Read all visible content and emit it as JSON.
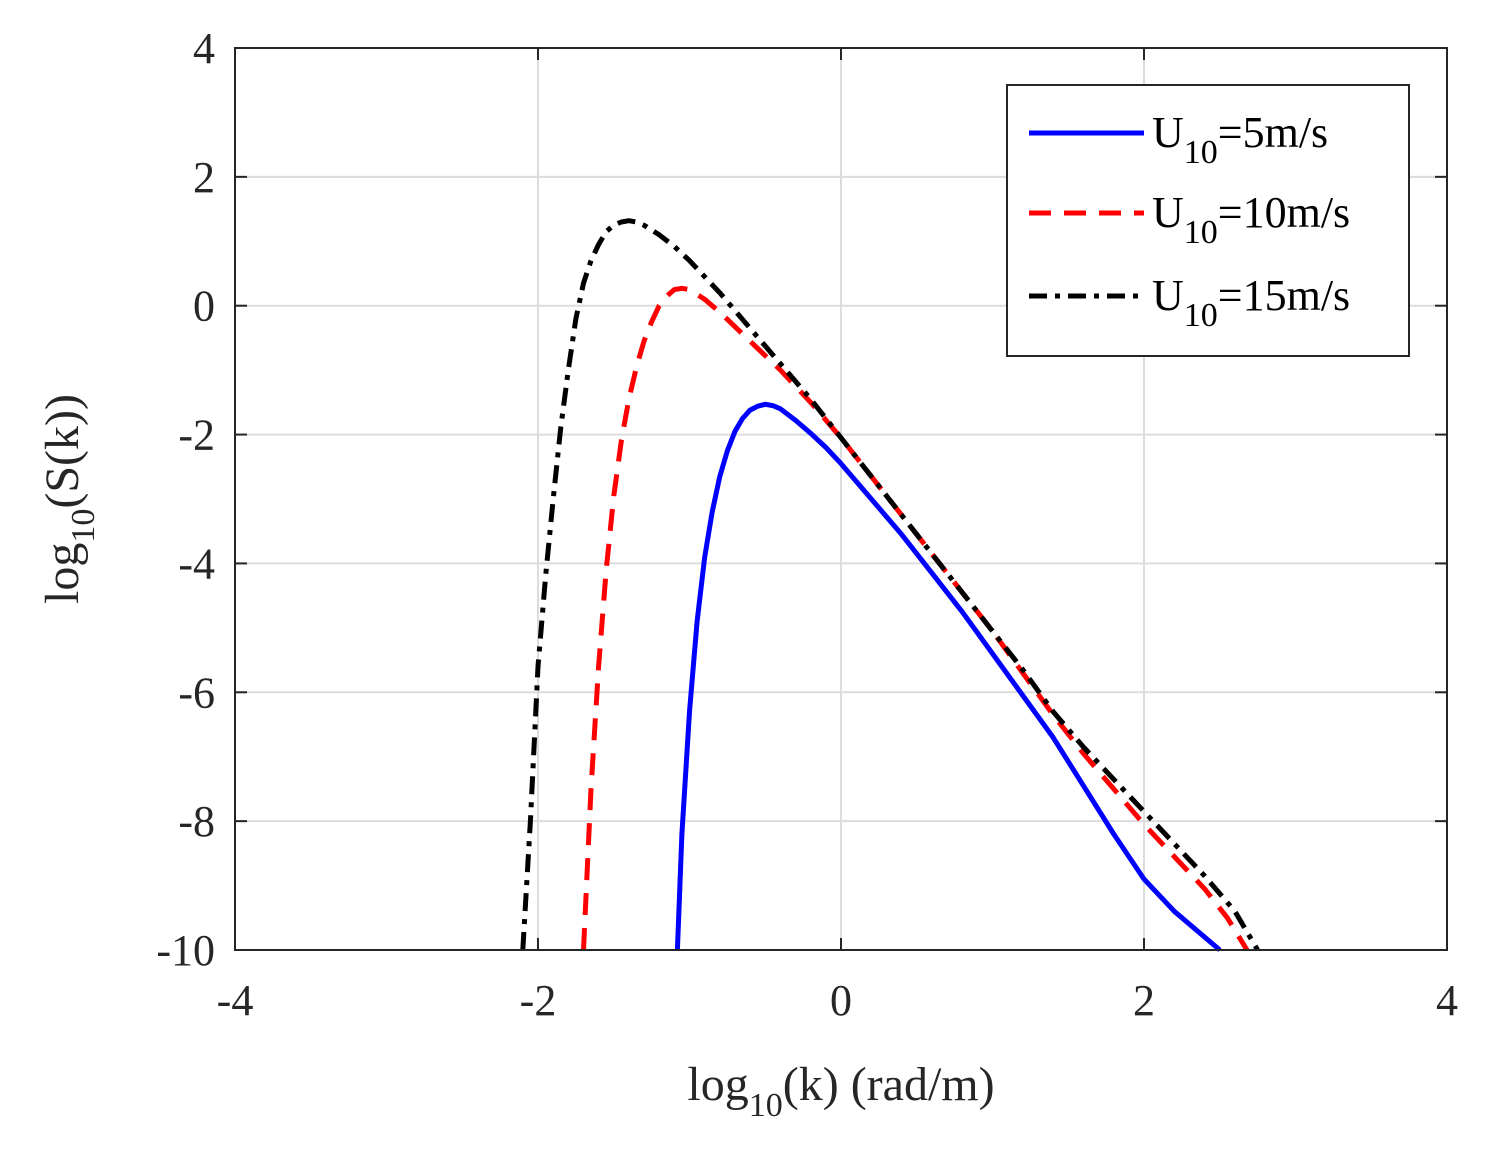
{
  "chart_data": {
    "type": "line",
    "title": "",
    "xlabel": "log10(k) (rad/m)",
    "xlabel_parts": {
      "prefix": "log",
      "sub": "10",
      "suffix": "(k) (rad/m)"
    },
    "ylabel": "log10(S(k))",
    "ylabel_parts": {
      "prefix": "log",
      "sub": "10",
      "suffix": "(S(k))"
    },
    "xlim": [
      -4,
      4
    ],
    "ylim": [
      -10,
      4
    ],
    "xticks": [
      -4,
      -2,
      0,
      2,
      4
    ],
    "yticks": [
      -10,
      -8,
      -6,
      -4,
      -2,
      0,
      2,
      4
    ],
    "xtick_labels": [
      "-4",
      "-2",
      "0",
      "2",
      "4"
    ],
    "ytick_labels": [
      "-10",
      "-8",
      "-6",
      "-4",
      "-2",
      "0",
      "2",
      "4"
    ],
    "grid": true,
    "legend_position": "top-right",
    "series": [
      {
        "name": "U10=5m/s",
        "label_parts": {
          "prefix": "U",
          "sub": "10",
          "suffix": "=5m/s"
        },
        "color": "#0000ff",
        "dash": "solid",
        "x": [
          -1.08,
          -1.05,
          -1.0,
          -0.95,
          -0.9,
          -0.85,
          -0.8,
          -0.75,
          -0.7,
          -0.65,
          -0.6,
          -0.55,
          -0.5,
          -0.45,
          -0.4,
          -0.3,
          -0.2,
          -0.1,
          0.0,
          0.2,
          0.4,
          0.6,
          0.8,
          1.0,
          1.2,
          1.4,
          1.6,
          1.8,
          2.0,
          2.2,
          2.5
        ],
        "y": [
          -10.0,
          -8.2,
          -6.3,
          -4.9,
          -3.9,
          -3.2,
          -2.65,
          -2.25,
          -1.95,
          -1.75,
          -1.62,
          -1.56,
          -1.53,
          -1.55,
          -1.6,
          -1.78,
          -1.98,
          -2.2,
          -2.45,
          -3.0,
          -3.55,
          -4.15,
          -4.75,
          -5.4,
          -6.05,
          -6.7,
          -7.45,
          -8.2,
          -8.9,
          -9.4,
          -10.0
        ]
      },
      {
        "name": "U10=10m/s",
        "label_parts": {
          "prefix": "U",
          "sub": "10",
          "suffix": "=10m/s"
        },
        "color": "#ff0000",
        "dash": "dashed",
        "x": [
          -1.7,
          -1.68,
          -1.65,
          -1.6,
          -1.55,
          -1.5,
          -1.45,
          -1.4,
          -1.35,
          -1.3,
          -1.25,
          -1.2,
          -1.15,
          -1.1,
          -1.05,
          -1.0,
          -0.9,
          -0.8,
          -0.6,
          -0.4,
          -0.2,
          0.0,
          0.2,
          0.4,
          0.6,
          0.8,
          1.0,
          1.2,
          1.4,
          1.6,
          1.8,
          2.0,
          2.2,
          2.4,
          2.55,
          2.68
        ],
        "y": [
          -10.0,
          -9.0,
          -7.5,
          -5.6,
          -4.1,
          -2.95,
          -2.1,
          -1.45,
          -0.95,
          -0.55,
          -0.25,
          0.0,
          0.15,
          0.25,
          0.27,
          0.25,
          0.1,
          -0.1,
          -0.55,
          -1.0,
          -1.5,
          -2.05,
          -2.65,
          -3.25,
          -3.85,
          -4.45,
          -5.05,
          -5.7,
          -6.35,
          -6.95,
          -7.5,
          -8.05,
          -8.55,
          -9.05,
          -9.5,
          -10.0
        ]
      },
      {
        "name": "U10=15m/s",
        "label_parts": {
          "prefix": "U",
          "sub": "10",
          "suffix": "=15m/s"
        },
        "color": "#000000",
        "dash": "dashdot",
        "x": [
          -2.1,
          -2.05,
          -2.0,
          -1.95,
          -1.9,
          -1.85,
          -1.8,
          -1.75,
          -1.7,
          -1.65,
          -1.6,
          -1.55,
          -1.5,
          -1.45,
          -1.4,
          -1.35,
          -1.3,
          -1.2,
          -1.1,
          -1.0,
          -0.8,
          -0.6,
          -0.4,
          -0.2,
          0.0,
          0.2,
          0.4,
          0.6,
          0.8,
          1.0,
          1.2,
          1.4,
          1.6,
          1.8,
          2.0,
          2.2,
          2.4,
          2.6,
          2.75
        ],
        "y": [
          -10.0,
          -8.0,
          -5.6,
          -4.2,
          -3.0,
          -1.9,
          -1.0,
          -0.2,
          0.35,
          0.7,
          0.95,
          1.15,
          1.25,
          1.3,
          1.32,
          1.3,
          1.25,
          1.1,
          0.92,
          0.7,
          0.2,
          -0.35,
          -0.9,
          -1.45,
          -2.05,
          -2.65,
          -3.25,
          -3.85,
          -4.45,
          -5.05,
          -5.65,
          -6.3,
          -6.85,
          -7.35,
          -7.85,
          -8.35,
          -8.85,
          -9.4,
          -10.0
        ]
      }
    ]
  }
}
